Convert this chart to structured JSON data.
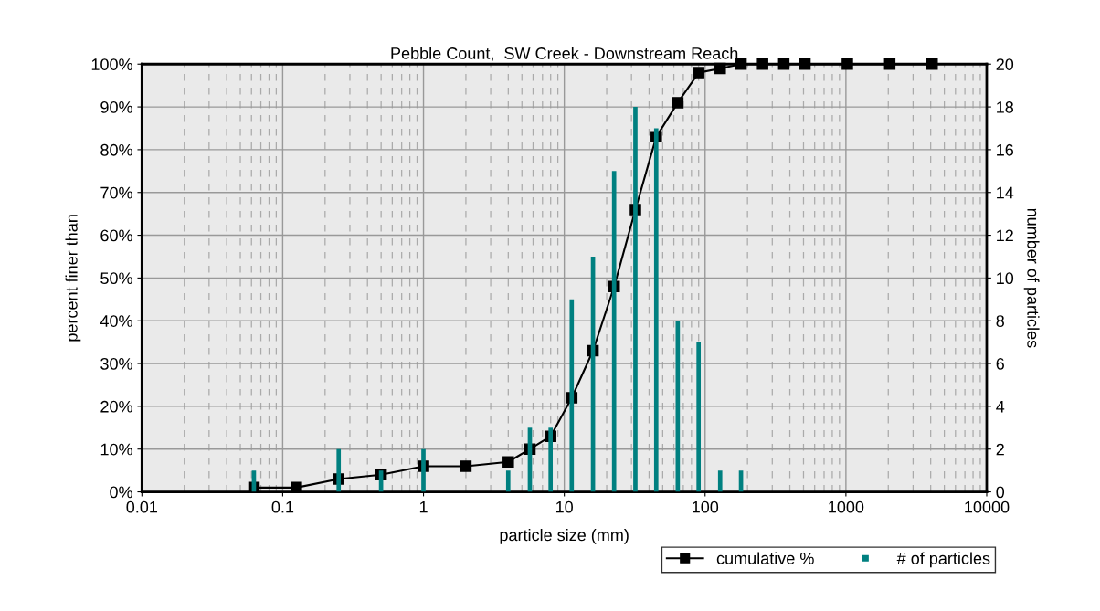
{
  "chart_data": {
    "type": "bar",
    "title": "Pebble Count,  SW Creek - Downstream Reach",
    "xlabel": "particle size (mm)",
    "ylabel": "percent finer than",
    "y2label": "number of particles",
    "log": "x",
    "grid": true,
    "legend": "bottom right",
    "marker": "square",
    "xlim": [
      0.01,
      10000
    ],
    "xticks": [
      {
        "value": 0.01,
        "label": "0.01"
      },
      {
        "value": 0.1,
        "label": "0.1"
      },
      {
        "value": 1,
        "label": "1"
      },
      {
        "value": 10,
        "label": "10"
      },
      {
        "value": 100,
        "label": "100"
      },
      {
        "value": 1000,
        "label": "1000"
      },
      {
        "value": 10000,
        "label": "10000"
      }
    ],
    "ylim": [
      0,
      100
    ],
    "yticks": [
      {
        "value": 0,
        "label": "0%"
      },
      {
        "value": 10,
        "label": "10%"
      },
      {
        "value": 20,
        "label": "20%"
      },
      {
        "value": 30,
        "label": "30%"
      },
      {
        "value": 40,
        "label": "40%"
      },
      {
        "value": 50,
        "label": "50%"
      },
      {
        "value": 60,
        "label": "60%"
      },
      {
        "value": 70,
        "label": "70%"
      },
      {
        "value": 80,
        "label": "80%"
      },
      {
        "value": 90,
        "label": "90%"
      },
      {
        "value": 100,
        "label": "100%"
      }
    ],
    "y2lim": [
      0,
      20
    ],
    "y2ticks": [
      0,
      2,
      4,
      6,
      8,
      10,
      12,
      14,
      16,
      18,
      20
    ],
    "series": [
      {
        "name": "cumulative %",
        "type": "line",
        "color": "#000000",
        "x": [
          0.0625,
          0.125,
          0.25,
          0.5,
          1,
          2,
          4,
          5.7,
          8,
          11.3,
          16,
          22.6,
          32,
          45,
          64,
          90,
          128,
          180,
          256,
          362,
          512,
          1024,
          2048,
          4096
        ],
        "values": [
          1,
          1,
          3,
          4,
          6,
          6,
          7,
          10,
          13,
          22,
          33,
          48,
          66,
          83,
          91,
          98,
          99,
          100,
          100,
          100,
          100,
          100,
          100,
          100
        ]
      },
      {
        "name": "# of particles",
        "axis": "y2",
        "color": "#008080",
        "x": [
          0.0625,
          0.25,
          0.5,
          1,
          4,
          5.7,
          8,
          11.3,
          16,
          22.6,
          32,
          45,
          64,
          90,
          128,
          180
        ],
        "values": [
          1,
          2,
          1,
          2,
          1,
          3,
          3,
          9,
          11,
          15,
          18,
          17,
          8,
          7,
          1,
          1
        ]
      }
    ]
  }
}
